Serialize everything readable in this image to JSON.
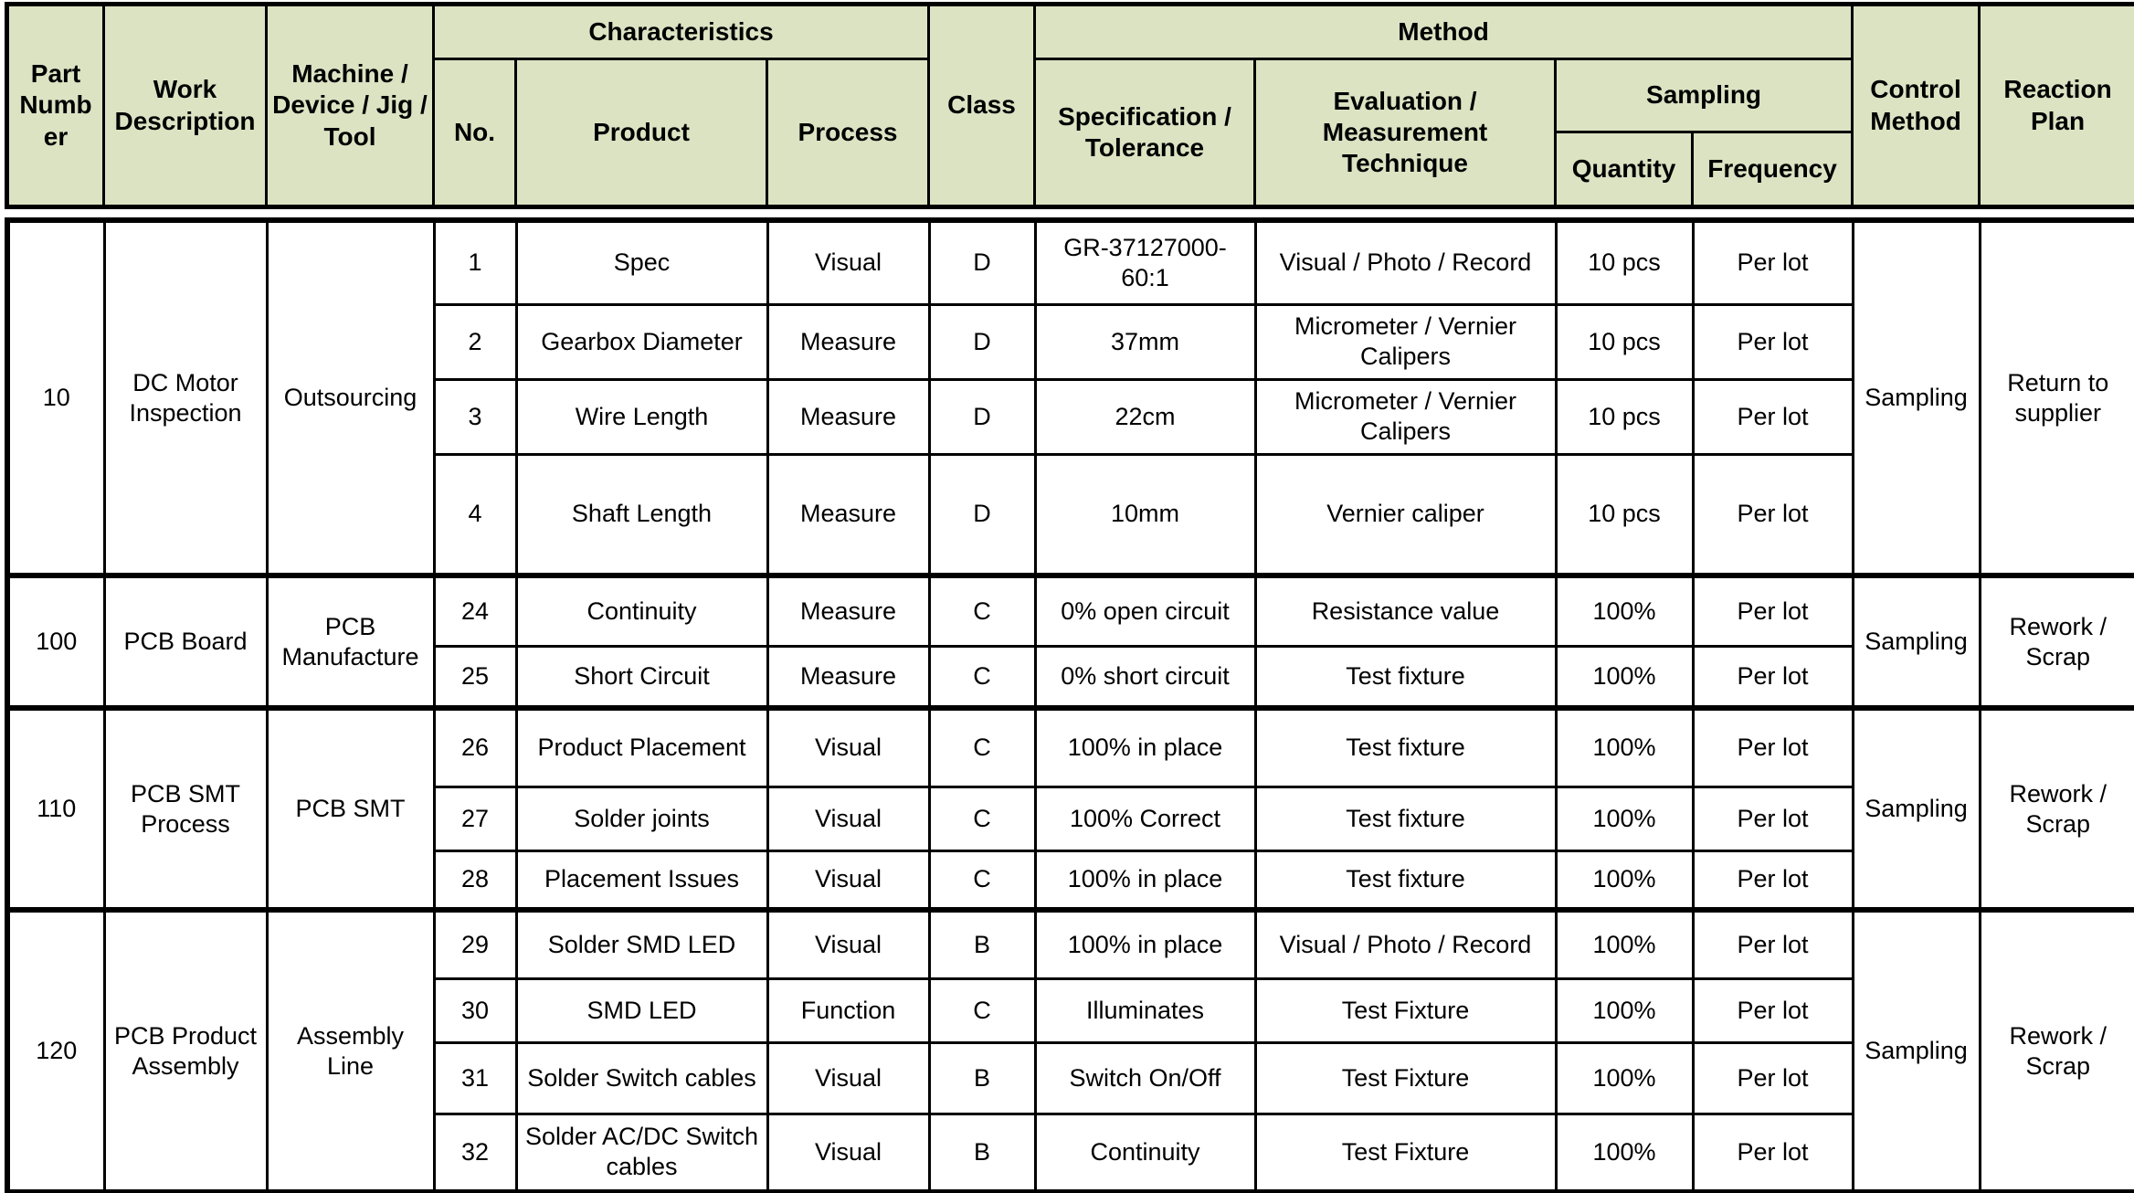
{
  "colors": {
    "header_bg": "#dce3c3",
    "border": "#000000"
  },
  "header": {
    "part_number": "Part Number",
    "work_description": "Work Description",
    "machine": "Machine / Device / Jig / Tool",
    "characteristics": "Characteristics",
    "no": "No.",
    "product": "Product",
    "process": "Process",
    "class": "Class",
    "method": "Method",
    "specification": "Specification / Tolerance",
    "evaluation": "Evaluation / Measurement Technique",
    "sampling": "Sampling",
    "quantity": "Quantity",
    "frequency": "Frequency",
    "control_method": "Control Method",
    "reaction_plan": "Reaction Plan"
  },
  "groups": [
    {
      "part_number": "10",
      "work_description": "DC Motor Inspection",
      "machine": "Outsourcing",
      "control_method": "Sampling",
      "reaction_plan": "Return to supplier",
      "rows": [
        {
          "no": "1",
          "product": "Spec",
          "process": "Visual",
          "class": "D",
          "specification": "GR-37127000-60:1",
          "evaluation": "Visual / Photo / Record",
          "quantity": "10 pcs",
          "frequency": "Per lot"
        },
        {
          "no": "2",
          "product": "Gearbox Diameter",
          "process": "Measure",
          "class": "D",
          "specification": "37mm",
          "evaluation": "Micrometer / Vernier Calipers",
          "quantity": "10 pcs",
          "frequency": "Per lot"
        },
        {
          "no": "3",
          "product": "Wire Length",
          "process": "Measure",
          "class": "D",
          "specification": "22cm",
          "evaluation": "Micrometer / Vernier Calipers",
          "quantity": "10 pcs",
          "frequency": "Per lot"
        },
        {
          "no": "4",
          "product": "Shaft Length",
          "process": "Measure",
          "class": "D",
          "specification": "10mm",
          "evaluation": "Vernier caliper",
          "quantity": "10 pcs",
          "frequency": "Per lot"
        }
      ]
    },
    {
      "part_number": "100",
      "work_description": "PCB Board",
      "machine": "PCB Manufacture",
      "control_method": "Sampling",
      "reaction_plan": "Rework / Scrap",
      "rows": [
        {
          "no": "24",
          "product": "Continuity",
          "process": "Measure",
          "class": "C",
          "specification": "0% open circuit",
          "evaluation": "Resistance value",
          "quantity": "100%",
          "frequency": "Per lot"
        },
        {
          "no": "25",
          "product": "Short Circuit",
          "process": "Measure",
          "class": "C",
          "specification": "0% short circuit",
          "evaluation": "Test fixture",
          "quantity": "100%",
          "frequency": "Per lot"
        }
      ]
    },
    {
      "part_number": "110",
      "work_description": "PCB SMT Process",
      "machine": "PCB SMT",
      "control_method": "Sampling",
      "reaction_plan": "Rework / Scrap",
      "rows": [
        {
          "no": "26",
          "product": "Product Placement",
          "process": "Visual",
          "class": "C",
          "specification": "100% in place",
          "evaluation": "Test fixture",
          "quantity": "100%",
          "frequency": "Per lot"
        },
        {
          "no": "27",
          "product": "Solder joints",
          "process": "Visual",
          "class": "C",
          "specification": "100% Correct",
          "evaluation": "Test fixture",
          "quantity": "100%",
          "frequency": "Per lot"
        },
        {
          "no": "28",
          "product": "Placement Issues",
          "process": "Visual",
          "class": "C",
          "specification": "100% in place",
          "evaluation": "Test fixture",
          "quantity": "100%",
          "frequency": "Per lot"
        }
      ]
    },
    {
      "part_number": "120",
      "work_description": "PCB Product Assembly",
      "machine": "Assembly Line",
      "control_method": "Sampling",
      "reaction_plan": "Rework / Scrap",
      "rows": [
        {
          "no": "29",
          "product": "Solder SMD LED",
          "process": "Visual",
          "class": "B",
          "specification": "100% in place",
          "evaluation": "Visual / Photo / Record",
          "quantity": "100%",
          "frequency": "Per lot"
        },
        {
          "no": "30",
          "product": "SMD LED",
          "process": "Function",
          "class": "C",
          "specification": "Illuminates",
          "evaluation": "Test Fixture",
          "quantity": "100%",
          "frequency": "Per lot"
        },
        {
          "no": "31",
          "product": "Solder Switch cables",
          "process": "Visual",
          "class": "B",
          "specification": "Switch On/Off",
          "evaluation": "Test Fixture",
          "quantity": "100%",
          "frequency": "Per lot"
        },
        {
          "no": "32",
          "product": "Solder AC/DC Switch cables",
          "process": "Visual",
          "class": "B",
          "specification": "Continuity",
          "evaluation": "Test Fixture",
          "quantity": "100%",
          "frequency": "Per lot"
        }
      ]
    }
  ]
}
